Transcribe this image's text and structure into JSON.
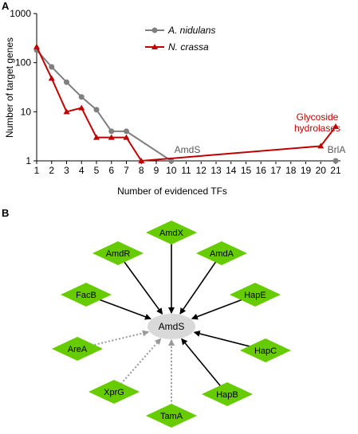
{
  "panels": {
    "a": "A",
    "b": "B"
  },
  "chart_data": {
    "type": "line",
    "xlabel": "Number of evidenced TFs",
    "ylabel": "Number of target genes",
    "yscale": "log",
    "ylim": [
      1,
      1000
    ],
    "xlim": [
      1,
      21
    ],
    "x_ticks": [
      "1",
      "2",
      "3",
      "4",
      "5",
      "6",
      "7",
      "8",
      "9",
      "10",
      "11",
      "12",
      "13",
      "14",
      "15",
      "16",
      "17",
      "18",
      "19",
      "20",
      "21"
    ],
    "y_ticks": [
      "1",
      "10",
      "100",
      "1000"
    ],
    "grid": false,
    "legend_position": "top-center",
    "series": [
      {
        "name": "A. nidulans",
        "color": "#7f7f7f",
        "marker": "circle",
        "x": [
          1,
          2,
          3,
          4,
          5,
          6,
          7,
          10,
          21
        ],
        "y": [
          180,
          82,
          40,
          20,
          11,
          4,
          4,
          1,
          1
        ]
      },
      {
        "name": "N. crassa",
        "color": "#c00000",
        "marker": "triangle",
        "x": [
          1,
          2,
          3,
          4,
          5,
          6,
          7,
          8,
          20,
          21
        ],
        "y": [
          210,
          48,
          10,
          12,
          3,
          3,
          3,
          1,
          2,
          5
        ]
      }
    ],
    "annotations": [
      {
        "text": "AmdS",
        "x": 10,
        "y": 1,
        "color": "#595959"
      },
      {
        "text": "BrlA",
        "x": 21,
        "y": 1,
        "color": "#595959"
      },
      {
        "text_lines": [
          "Glycoside",
          "hydrolases"
        ],
        "x": 20.5,
        "y": 5,
        "color": "#c00000"
      }
    ]
  },
  "network": {
    "center": "AmdS",
    "node_color": "#66cc00",
    "center_color": "#d9d9d9",
    "nodes": [
      {
        "label": "AmdX",
        "edge": "solid"
      },
      {
        "label": "AmdA",
        "edge": "solid"
      },
      {
        "label": "HapE",
        "edge": "solid"
      },
      {
        "label": "HapC",
        "edge": "solid"
      },
      {
        "label": "HapB",
        "edge": "solid"
      },
      {
        "label": "TamA",
        "edge": "dotted"
      },
      {
        "label": "XprG",
        "edge": "dotted"
      },
      {
        "label": "AreA",
        "edge": "dotted"
      },
      {
        "label": "FacB",
        "edge": "solid"
      },
      {
        "label": "AmdR",
        "edge": "solid"
      }
    ]
  }
}
